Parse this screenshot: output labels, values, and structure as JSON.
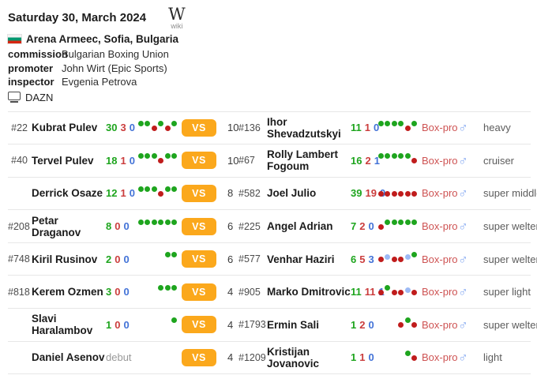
{
  "header": {
    "date": "Saturday 30, March 2024",
    "wiki_w": "W",
    "wiki_label": "wiki",
    "venue": "Arena Armeec, Sofia, Bulgaria",
    "details": [
      {
        "label": "commission",
        "value": "Bulgarian Boxing Union"
      },
      {
        "label": "promoter",
        "value": "John Wirt (Epic Sports)"
      },
      {
        "label": "inspector",
        "value": "Evgenia Petrova"
      }
    ],
    "broadcaster": "DAZN"
  },
  "colors": {
    "win": "#1ea51e",
    "loss_dot": "#c01c1c",
    "loss_text": "#cb3d3d",
    "draw_dot": "#9dbaf5",
    "draw_text": "#4272d7",
    "vs_badge": "#fba81c",
    "box_pro": "#ce5353",
    "male": "#8badf2"
  },
  "table": {
    "vs_label": "VS",
    "type_label": "Box-pro",
    "male_symbol": "♂"
  },
  "fights": [
    {
      "rounds": "10",
      "weight": "heavy",
      "gender": "male",
      "left": {
        "rank": "#22",
        "name": "Kubrat Pulev",
        "wins": "30",
        "losses": "3",
        "draws": "0",
        "form": [
          "W",
          "W",
          "L",
          "W",
          "L",
          "W"
        ]
      },
      "right": {
        "rank": "#136",
        "name": "Ihor Shevadzutskyi",
        "wins": "11",
        "losses": "1",
        "draws": "0",
        "form": [
          "W",
          "W",
          "W",
          "W",
          "L",
          "W"
        ]
      }
    },
    {
      "rounds": "10",
      "weight": "cruiser",
      "gender": "male",
      "left": {
        "rank": "#40",
        "name": "Tervel Pulev",
        "wins": "18",
        "losses": "1",
        "draws": "0",
        "form": [
          "W",
          "W",
          "W",
          "L",
          "W",
          "W"
        ]
      },
      "right": {
        "rank": "#67",
        "name": "Rolly Lambert Fogoum",
        "wins": "16",
        "losses": "2",
        "draws": "1",
        "form": [
          "W",
          "W",
          "W",
          "W",
          "W",
          "L"
        ]
      }
    },
    {
      "rounds": "8",
      "weight": "super middle",
      "gender": "male",
      "left": {
        "rank": "",
        "name": "Derrick Osaze",
        "wins": "12",
        "losses": "1",
        "draws": "0",
        "form": [
          "W",
          "W",
          "W",
          "L",
          "W",
          "W"
        ]
      },
      "right": {
        "rank": "#582",
        "name": "Joel Julio",
        "wins": "39",
        "losses": "19",
        "draws": "0",
        "form": [
          "L",
          "L",
          "L",
          "L",
          "L",
          "L"
        ]
      }
    },
    {
      "rounds": "6",
      "weight": "super welter",
      "gender": "male",
      "left": {
        "rank": "#208",
        "name": "Petar Draganov",
        "wins": "8",
        "losses": "0",
        "draws": "0",
        "form": [
          "W",
          "W",
          "W",
          "W",
          "W",
          "W"
        ]
      },
      "right": {
        "rank": "#225",
        "name": "Angel Adrian",
        "wins": "7",
        "losses": "2",
        "draws": "0",
        "form": [
          "L",
          "W",
          "W",
          "W",
          "W",
          "W"
        ]
      }
    },
    {
      "rounds": "6",
      "weight": "super welter",
      "gender": "male",
      "left": {
        "rank": "#748",
        "name": "Kiril Rusinov",
        "wins": "2",
        "losses": "0",
        "draws": "0",
        "form": [
          "W",
          "W"
        ]
      },
      "right": {
        "rank": "#577",
        "name": "Venhar Haziri",
        "wins": "6",
        "losses": "5",
        "draws": "3",
        "form": [
          "L",
          "D",
          "L",
          "L",
          "D",
          "W"
        ]
      }
    },
    {
      "rounds": "4",
      "weight": "super light",
      "gender": "male",
      "left": {
        "rank": "#818",
        "name": "Kerem Ozmen",
        "wins": "3",
        "losses": "0",
        "draws": "0",
        "form": [
          "W",
          "W",
          "W"
        ]
      },
      "right": {
        "rank": "#905",
        "name": "Marko Dmitrovic",
        "wins": "11",
        "losses": "11",
        "draws": "1",
        "form": [
          "L",
          "W",
          "L",
          "L",
          "D",
          "L"
        ]
      }
    },
    {
      "rounds": "4",
      "weight": "super welter",
      "gender": "male",
      "left": {
        "rank": "",
        "name": "Slavi Haralambov",
        "wins": "1",
        "losses": "0",
        "draws": "0",
        "form": [
          "W"
        ]
      },
      "right": {
        "rank": "#1793",
        "name": "Ermin Sali",
        "wins": "1",
        "losses": "2",
        "draws": "0",
        "form": [
          "L",
          "W",
          "L"
        ]
      }
    },
    {
      "rounds": "4",
      "weight": "light",
      "gender": "male",
      "left": {
        "rank": "",
        "name": "Daniel Asenov",
        "debut": "debut",
        "form": []
      },
      "right": {
        "rank": "#1209",
        "name": "Kristijan Jovanovic",
        "wins": "1",
        "losses": "1",
        "draws": "0",
        "form": [
          "W",
          "L"
        ]
      }
    }
  ]
}
